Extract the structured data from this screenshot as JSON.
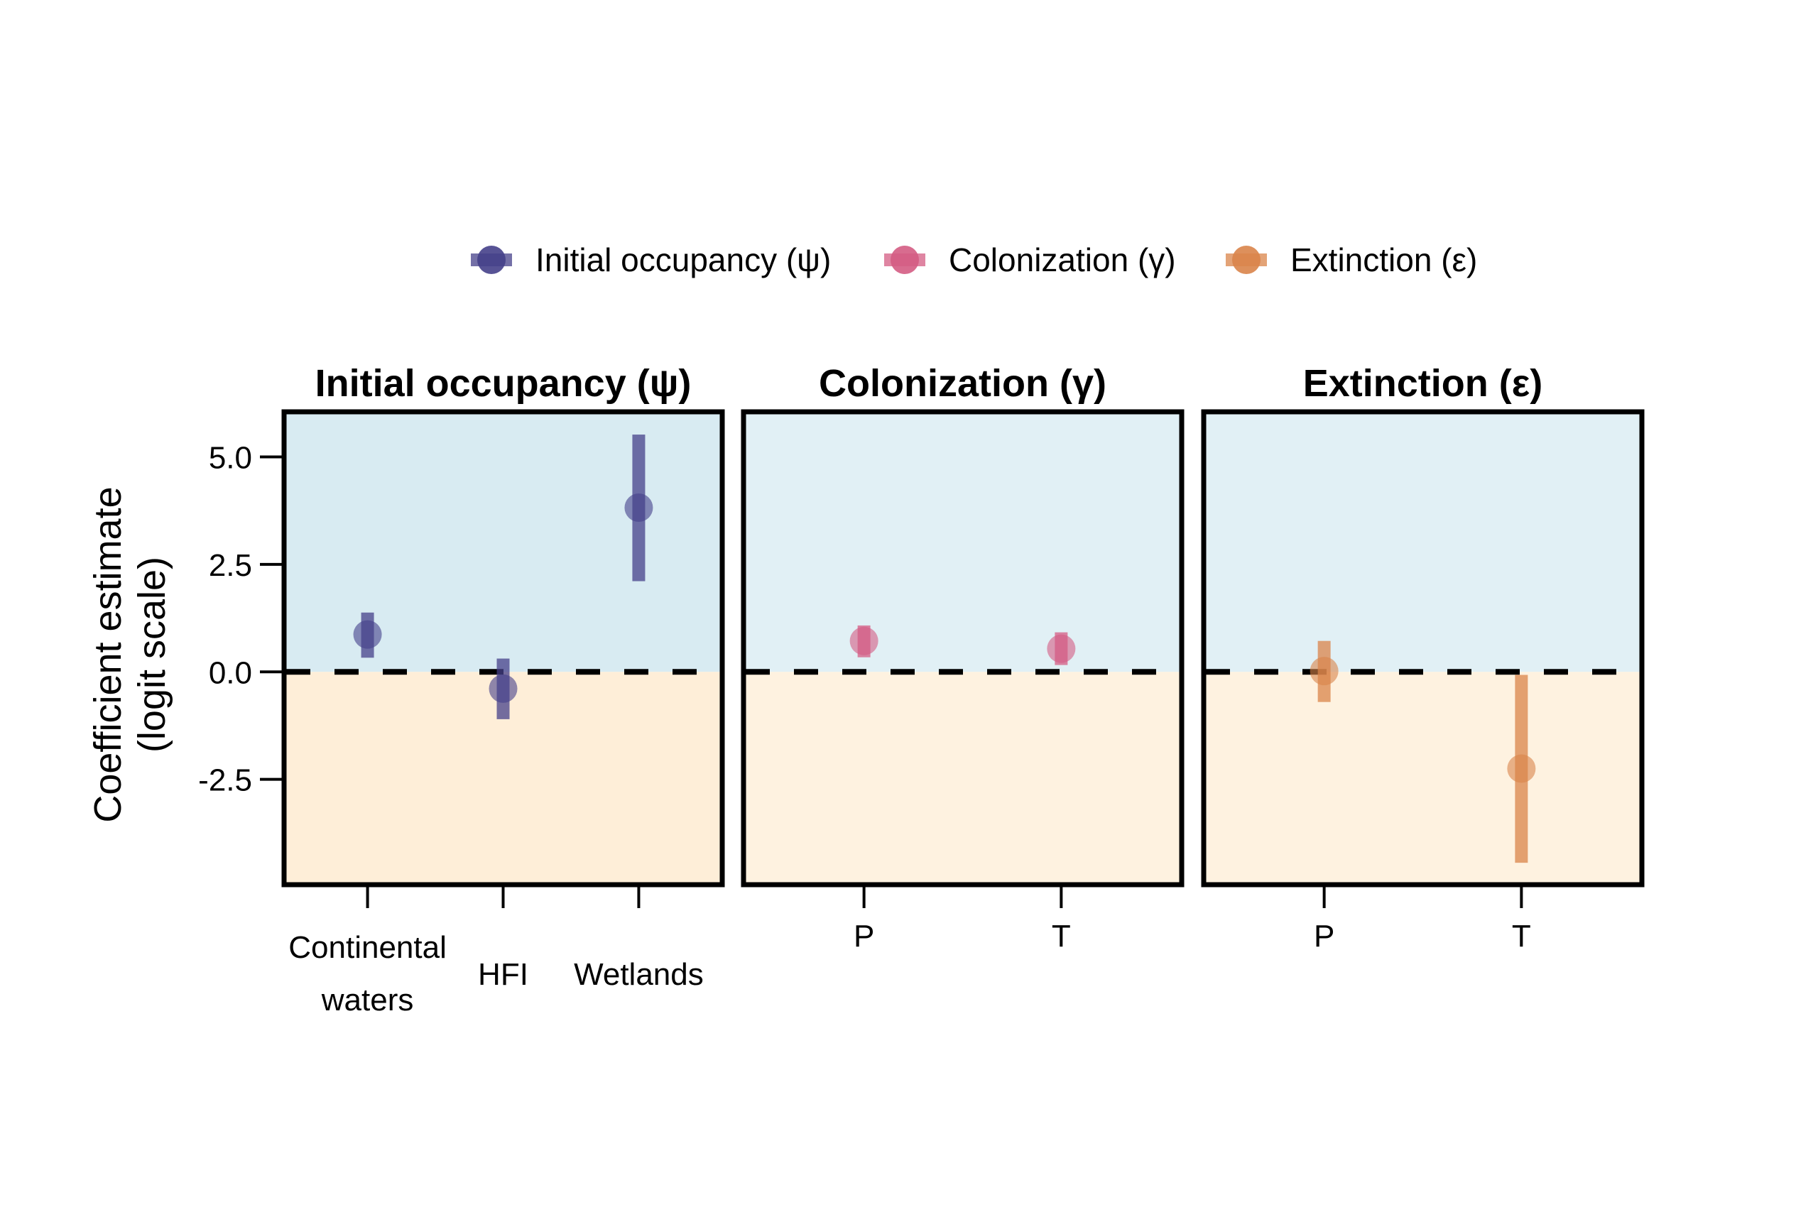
{
  "chart_data": {
    "type": "scatter",
    "subtype": "coefficient-plot-with-intervals",
    "ylabel": [
      "Coefficient estimate",
      "(logit scale)"
    ],
    "ylim": [
      -4.9,
      6.0
    ],
    "yticks": [
      5.0,
      2.5,
      0.0,
      -2.5
    ],
    "ytick_labels": [
      "5.0",
      "2.5",
      "0.0",
      "-2.5"
    ],
    "reference_line": {
      "y": 0,
      "style": "dashed",
      "color": "#000000"
    },
    "shading": {
      "above_zero": "blue",
      "below_zero": "orange"
    },
    "legend": {
      "placement": "top-center",
      "entries": [
        {
          "label": "Initial occupancy (ψ)",
          "color": "#45408a"
        },
        {
          "label": "Colonization (γ)",
          "color": "#d45c83"
        },
        {
          "label": "Extinction (ε)",
          "color": "#d9844a"
        }
      ]
    },
    "panels": [
      {
        "title": "Initial occupancy (ψ)",
        "color": "#45408a",
        "bg_above": "#d8ebf2",
        "bg_below": "#feeed8",
        "categories": [
          [
            "Continental",
            "waters"
          ],
          [
            "HFI"
          ],
          [
            "Wetlands"
          ]
        ],
        "estimates": [
          0.87,
          -0.39,
          3.82
        ],
        "lower": [
          0.33,
          -1.1,
          2.11
        ],
        "upper": [
          1.38,
          0.31,
          5.52
        ]
      },
      {
        "title": "Colonization (γ)",
        "color": "#d45c83",
        "bg_above": "#e1f0f5",
        "bg_below": "#fef2e0",
        "categories": [
          [
            "P"
          ],
          [
            "T"
          ]
        ],
        "estimates": [
          0.72,
          0.54
        ],
        "lower": [
          0.34,
          0.16
        ],
        "upper": [
          1.08,
          0.92
        ]
      },
      {
        "title": "Extinction (ε)",
        "color": "#d9844a",
        "bg_above": "#e1f0f5",
        "bg_below": "#fef2e0",
        "categories": [
          [
            "P"
          ],
          [
            "T"
          ]
        ],
        "estimates": [
          0.02,
          -2.25
        ],
        "lower": [
          -0.7,
          -4.44
        ],
        "upper": [
          0.72,
          -0.07
        ]
      }
    ]
  }
}
